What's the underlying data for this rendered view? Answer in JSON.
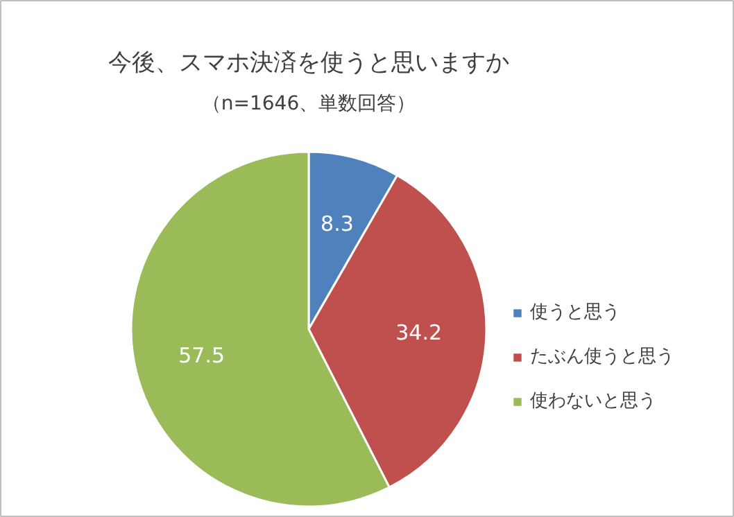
{
  "chart_data": {
    "type": "pie",
    "title": "今後、スマホ決済を使うと思いますか",
    "subtitle": "（n=1646、単数回答）",
    "categories": [
      "使うと思う",
      "たぶん使うと思う",
      "使わないと思う"
    ],
    "values": [
      8.3,
      34.2,
      57.5
    ],
    "colors": [
      "#4f81bd",
      "#c0504d",
      "#9bbb59"
    ],
    "data_labels": true,
    "legend": "right"
  }
}
